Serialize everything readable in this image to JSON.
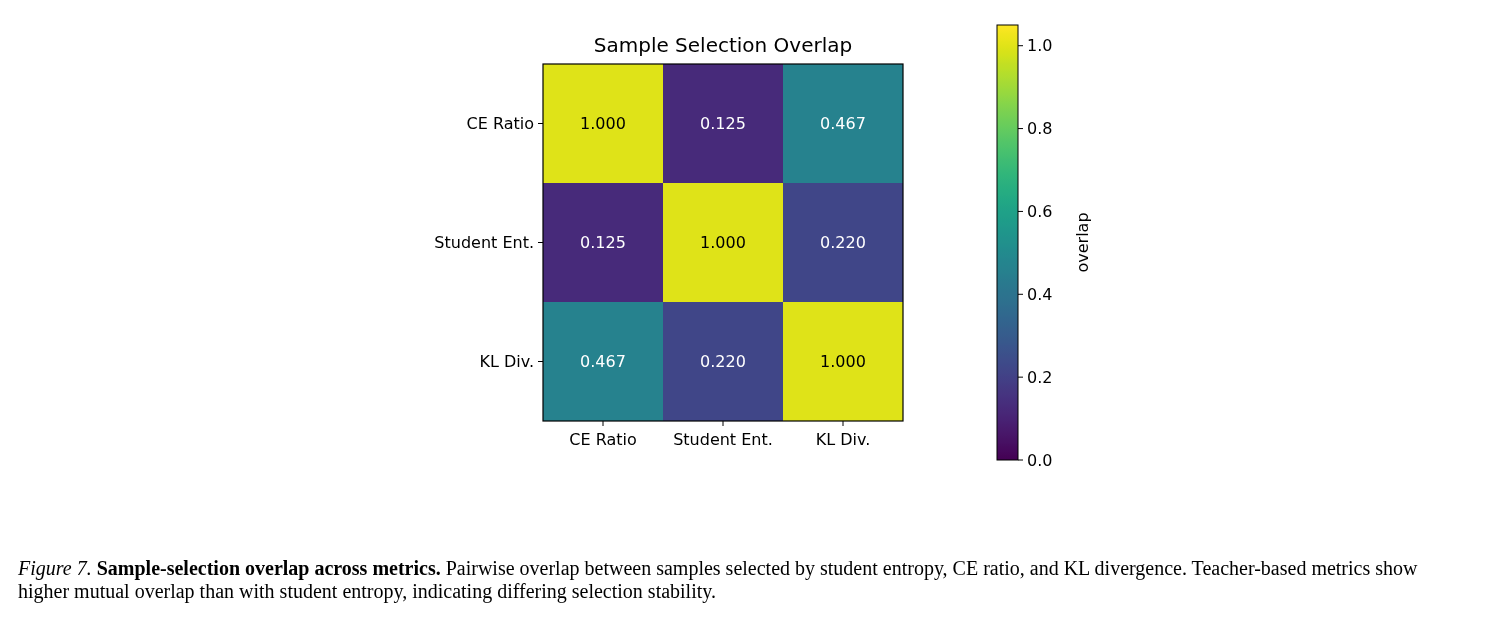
{
  "chart_data": {
    "type": "heatmap",
    "title": "Sample Selection Overlap",
    "categories": [
      "CE Ratio",
      "Student Ent.",
      "KL Div."
    ],
    "y_categories": [
      "CE Ratio",
      "Student Ent.",
      "KL Div."
    ],
    "cells": [
      [
        1.0,
        0.125,
        0.467
      ],
      [
        0.125,
        1.0,
        0.22
      ],
      [
        0.467,
        0.22,
        1.0
      ]
    ],
    "cell_labels": [
      [
        "1.000",
        "0.125",
        "0.467"
      ],
      [
        "0.125",
        "1.000",
        "0.220"
      ],
      [
        "0.467",
        "0.220",
        "1.000"
      ]
    ],
    "clabel": "overlap",
    "clim": [
      0,
      1.05
    ],
    "cticks": [
      {
        "value": 0,
        "label": "0.0"
      },
      {
        "value": 0.2,
        "label": "0.2"
      },
      {
        "value": 0.4,
        "label": "0.4"
      },
      {
        "value": 0.6,
        "label": "0.6"
      },
      {
        "value": 0.8,
        "label": "0.8"
      },
      {
        "value": 1.0,
        "label": "1.0"
      }
    ],
    "annotations": [
      "Figure 7.",
      "Sample-selection overlap across metrics.",
      "Pairwise overlap between samples selected by student entropy, CE ratio, and KL divergence. Teacher-based metrics show higher mutual overlap than with student entropy, indicating differing selection stability."
    ]
  }
}
